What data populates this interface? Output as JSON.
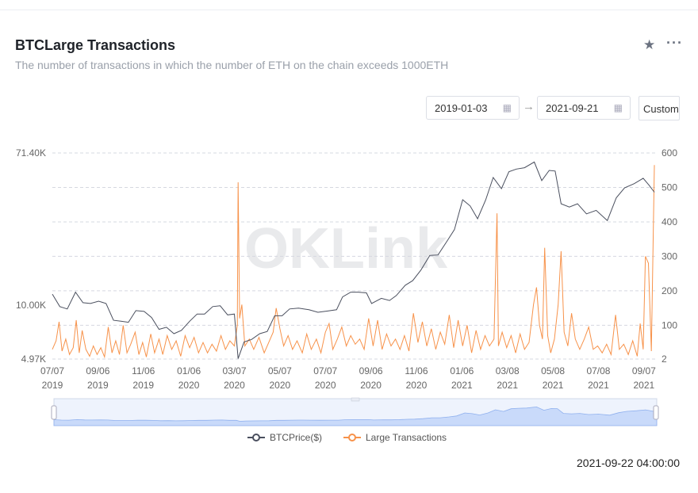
{
  "header": {
    "title": "BTCLarge Transactions",
    "subtitle": "The number of transactions in which the number of ETH on the chain exceeds 1000ETH"
  },
  "controls": {
    "start_date": "2019-01-03",
    "end_date": "2021-09-21",
    "arrow": "→",
    "custom_label": "Custom"
  },
  "icons": {
    "favorite": "star-icon",
    "more": "more-icon",
    "calendar": "calendar-icon"
  },
  "timestamp": "2021-09-22 04:00:00",
  "watermark": "OKLink",
  "colors": {
    "btc": "#4a4f5e",
    "tx": "#f7924a",
    "grid": "#d5d8e0",
    "nav": "#c9dafa"
  },
  "chart_data": {
    "type": "line",
    "x_range": [
      "2019-07-07",
      "2021-09-21"
    ],
    "x_ticks": [
      [
        "07/07",
        "2019",
        "2019-07-07"
      ],
      [
        "09/06",
        "2019",
        "2019-09-06"
      ],
      [
        "11/06",
        "2019",
        "2019-11-06"
      ],
      [
        "01/06",
        "2020",
        "2020-01-06"
      ],
      [
        "03/07",
        "2020",
        "2020-03-07"
      ],
      [
        "05/07",
        "2020",
        "2020-05-07"
      ],
      [
        "07/07",
        "2020",
        "2020-07-07"
      ],
      [
        "09/06",
        "2020",
        "2020-09-06"
      ],
      [
        "11/06",
        "2020",
        "2020-11-06"
      ],
      [
        "01/06",
        "2021",
        "2021-01-06"
      ],
      [
        "03/08",
        "2021",
        "2021-03-08"
      ],
      [
        "05/08",
        "2021",
        "2021-05-08"
      ],
      [
        "07/08",
        "2021",
        "2021-07-08"
      ],
      [
        "09/07",
        "2021",
        "2021-09-07"
      ]
    ],
    "y_left": {
      "scale": "log",
      "min": 4970,
      "max": 71400,
      "ticks": [
        [
          "71.40K",
          71400
        ],
        [
          "10.00K",
          10000
        ],
        [
          "4.97K",
          4970
        ]
      ]
    },
    "y_right": {
      "scale": "linear",
      "min": 2,
      "max": 600,
      "ticks": [
        [
          "600",
          600
        ],
        [
          "500",
          500
        ],
        [
          "400",
          400
        ],
        [
          "300",
          300
        ],
        [
          "200",
          200
        ],
        [
          "100",
          100
        ],
        [
          "2",
          2
        ]
      ]
    },
    "series": [
      {
        "name": "BTCPrice($)",
        "axis": "left",
        "points": [
          [
            "2019-07-07",
            11500
          ],
          [
            "2019-07-17",
            9800
          ],
          [
            "2019-07-27",
            9500
          ],
          [
            "2019-08-07",
            11800
          ],
          [
            "2019-08-17",
            10300
          ],
          [
            "2019-08-27",
            10200
          ],
          [
            "2019-09-07",
            10500
          ],
          [
            "2019-09-17",
            10200
          ],
          [
            "2019-09-27",
            8200
          ],
          [
            "2019-10-07",
            8100
          ],
          [
            "2019-10-17",
            8000
          ],
          [
            "2019-10-27",
            9300
          ],
          [
            "2019-11-07",
            9200
          ],
          [
            "2019-11-17",
            8500
          ],
          [
            "2019-11-27",
            7300
          ],
          [
            "2019-12-07",
            7500
          ],
          [
            "2019-12-17",
            6900
          ],
          [
            "2019-12-27",
            7200
          ],
          [
            "2020-01-07",
            8100
          ],
          [
            "2020-01-17",
            8900
          ],
          [
            "2020-01-27",
            8900
          ],
          [
            "2020-02-07",
            9800
          ],
          [
            "2020-02-17",
            9900
          ],
          [
            "2020-02-27",
            8800
          ],
          [
            "2020-03-07",
            8900
          ],
          [
            "2020-03-12",
            5000
          ],
          [
            "2020-03-20",
            6200
          ],
          [
            "2020-03-30",
            6400
          ],
          [
            "2020-04-10",
            6900
          ],
          [
            "2020-04-20",
            7100
          ],
          [
            "2020-04-30",
            8700
          ],
          [
            "2020-05-10",
            8700
          ],
          [
            "2020-05-20",
            9500
          ],
          [
            "2020-06-01",
            9600
          ],
          [
            "2020-06-15",
            9400
          ],
          [
            "2020-06-27",
            9100
          ],
          [
            "2020-07-10",
            9250
          ],
          [
            "2020-07-22",
            9400
          ],
          [
            "2020-07-30",
            11100
          ],
          [
            "2020-08-10",
            11800
          ],
          [
            "2020-08-20",
            11800
          ],
          [
            "2020-08-31",
            11700
          ],
          [
            "2020-09-07",
            10200
          ],
          [
            "2020-09-20",
            10900
          ],
          [
            "2020-10-01",
            10600
          ],
          [
            "2020-10-10",
            11300
          ],
          [
            "2020-10-22",
            12900
          ],
          [
            "2020-11-01",
            13700
          ],
          [
            "2020-11-12",
            15700
          ],
          [
            "2020-11-24",
            19000
          ],
          [
            "2020-12-05",
            19100
          ],
          [
            "2020-12-17",
            22800
          ],
          [
            "2020-12-27",
            26500
          ],
          [
            "2021-01-07",
            39000
          ],
          [
            "2021-01-17",
            36000
          ],
          [
            "2021-01-27",
            30500
          ],
          [
            "2021-02-07",
            39000
          ],
          [
            "2021-02-17",
            52000
          ],
          [
            "2021-02-28",
            45000
          ],
          [
            "2021-03-10",
            56000
          ],
          [
            "2021-03-20",
            58000
          ],
          [
            "2021-03-31",
            59000
          ],
          [
            "2021-04-13",
            63500
          ],
          [
            "2021-04-23",
            50000
          ],
          [
            "2021-05-03",
            57000
          ],
          [
            "2021-05-11",
            56500
          ],
          [
            "2021-05-19",
            37000
          ],
          [
            "2021-05-30",
            35500
          ],
          [
            "2021-06-10",
            37000
          ],
          [
            "2021-06-22",
            32500
          ],
          [
            "2021-07-05",
            34000
          ],
          [
            "2021-07-20",
            29800
          ],
          [
            "2021-08-01",
            40000
          ],
          [
            "2021-08-12",
            45500
          ],
          [
            "2021-08-25",
            48000
          ],
          [
            "2021-09-06",
            51500
          ],
          [
            "2021-09-14",
            47000
          ],
          [
            "2021-09-21",
            43000
          ]
        ]
      },
      {
        "name": "Large Transactions",
        "axis": "right",
        "points": [
          [
            "2019-07-07",
            30
          ],
          [
            "2019-07-12",
            55
          ],
          [
            "2019-07-16",
            110
          ],
          [
            "2019-07-20",
            25
          ],
          [
            "2019-07-25",
            60
          ],
          [
            "2019-07-30",
            15
          ],
          [
            "2019-08-04",
            35
          ],
          [
            "2019-08-08",
            115
          ],
          [
            "2019-08-12",
            20
          ],
          [
            "2019-08-16",
            85
          ],
          [
            "2019-08-21",
            30
          ],
          [
            "2019-08-26",
            10
          ],
          [
            "2019-08-31",
            40
          ],
          [
            "2019-09-05",
            15
          ],
          [
            "2019-09-10",
            35
          ],
          [
            "2019-09-15",
            8
          ],
          [
            "2019-09-20",
            95
          ],
          [
            "2019-09-25",
            20
          ],
          [
            "2019-09-30",
            55
          ],
          [
            "2019-10-05",
            15
          ],
          [
            "2019-10-10",
            100
          ],
          [
            "2019-10-15",
            20
          ],
          [
            "2019-10-20",
            45
          ],
          [
            "2019-10-26",
            80
          ],
          [
            "2019-10-31",
            15
          ],
          [
            "2019-11-05",
            50
          ],
          [
            "2019-11-10",
            8
          ],
          [
            "2019-11-16",
            75
          ],
          [
            "2019-11-21",
            20
          ],
          [
            "2019-11-27",
            60
          ],
          [
            "2019-12-02",
            15
          ],
          [
            "2019-12-08",
            70
          ],
          [
            "2019-12-14",
            30
          ],
          [
            "2019-12-20",
            55
          ],
          [
            "2019-12-26",
            10
          ],
          [
            "2020-01-01",
            70
          ],
          [
            "2020-01-07",
            35
          ],
          [
            "2020-01-13",
            65
          ],
          [
            "2020-01-19",
            20
          ],
          [
            "2020-01-25",
            50
          ],
          [
            "2020-01-31",
            20
          ],
          [
            "2020-02-06",
            45
          ],
          [
            "2020-02-12",
            25
          ],
          [
            "2020-02-18",
            70
          ],
          [
            "2020-02-24",
            30
          ],
          [
            "2020-03-01",
            55
          ],
          [
            "2020-03-07",
            40
          ],
          [
            "2020-03-11",
            100
          ],
          [
            "2020-03-12",
            515
          ],
          [
            "2020-03-14",
            120
          ],
          [
            "2020-03-17",
            160
          ],
          [
            "2020-03-21",
            40
          ],
          [
            "2020-03-27",
            60
          ],
          [
            "2020-04-02",
            30
          ],
          [
            "2020-04-09",
            65
          ],
          [
            "2020-04-16",
            20
          ],
          [
            "2020-04-22",
            50
          ],
          [
            "2020-04-28",
            80
          ],
          [
            "2020-05-02",
            150
          ],
          [
            "2020-05-07",
            90
          ],
          [
            "2020-05-12",
            40
          ],
          [
            "2020-05-18",
            70
          ],
          [
            "2020-05-24",
            30
          ],
          [
            "2020-05-30",
            55
          ],
          [
            "2020-06-06",
            20
          ],
          [
            "2020-06-12",
            75
          ],
          [
            "2020-06-18",
            30
          ],
          [
            "2020-06-25",
            60
          ],
          [
            "2020-07-01",
            20
          ],
          [
            "2020-07-07",
            80
          ],
          [
            "2020-07-12",
            105
          ],
          [
            "2020-07-17",
            30
          ],
          [
            "2020-07-23",
            60
          ],
          [
            "2020-07-29",
            95
          ],
          [
            "2020-08-04",
            40
          ],
          [
            "2020-08-10",
            70
          ],
          [
            "2020-08-16",
            45
          ],
          [
            "2020-08-22",
            60
          ],
          [
            "2020-08-28",
            30
          ],
          [
            "2020-09-03",
            120
          ],
          [
            "2020-09-09",
            40
          ],
          [
            "2020-09-15",
            115
          ],
          [
            "2020-09-21",
            30
          ],
          [
            "2020-09-27",
            75
          ],
          [
            "2020-10-03",
            40
          ],
          [
            "2020-10-09",
            60
          ],
          [
            "2020-10-15",
            30
          ],
          [
            "2020-10-21",
            70
          ],
          [
            "2020-10-27",
            25
          ],
          [
            "2020-11-02",
            135
          ],
          [
            "2020-11-08",
            50
          ],
          [
            "2020-11-14",
            110
          ],
          [
            "2020-11-20",
            40
          ],
          [
            "2020-11-26",
            90
          ],
          [
            "2020-12-02",
            30
          ],
          [
            "2020-12-08",
            80
          ],
          [
            "2020-12-14",
            45
          ],
          [
            "2020-12-20",
            130
          ],
          [
            "2020-12-26",
            35
          ],
          [
            "2021-01-01",
            115
          ],
          [
            "2021-01-07",
            40
          ],
          [
            "2021-01-13",
            100
          ],
          [
            "2021-01-19",
            20
          ],
          [
            "2021-01-25",
            85
          ],
          [
            "2021-01-31",
            30
          ],
          [
            "2021-02-06",
            70
          ],
          [
            "2021-02-12",
            40
          ],
          [
            "2021-02-18",
            60
          ],
          [
            "2021-02-22",
            425
          ],
          [
            "2021-02-24",
            40
          ],
          [
            "2021-03-01",
            80
          ],
          [
            "2021-03-07",
            35
          ],
          [
            "2021-03-13",
            70
          ],
          [
            "2021-03-19",
            20
          ],
          [
            "2021-03-25",
            75
          ],
          [
            "2021-03-31",
            30
          ],
          [
            "2021-04-06",
            50
          ],
          [
            "2021-04-12",
            160
          ],
          [
            "2021-04-16",
            210
          ],
          [
            "2021-04-20",
            100
          ],
          [
            "2021-04-24",
            60
          ],
          [
            "2021-04-27",
            325
          ],
          [
            "2021-05-01",
            70
          ],
          [
            "2021-05-05",
            20
          ],
          [
            "2021-05-10",
            60
          ],
          [
            "2021-05-15",
            160
          ],
          [
            "2021-05-19",
            315
          ],
          [
            "2021-05-23",
            80
          ],
          [
            "2021-05-28",
            40
          ],
          [
            "2021-06-02",
            135
          ],
          [
            "2021-06-07",
            60
          ],
          [
            "2021-06-13",
            30
          ],
          [
            "2021-06-19",
            60
          ],
          [
            "2021-06-25",
            95
          ],
          [
            "2021-07-01",
            30
          ],
          [
            "2021-07-07",
            40
          ],
          [
            "2021-07-13",
            20
          ],
          [
            "2021-07-19",
            45
          ],
          [
            "2021-07-25",
            15
          ],
          [
            "2021-07-31",
            130
          ],
          [
            "2021-08-05",
            30
          ],
          [
            "2021-08-11",
            45
          ],
          [
            "2021-08-17",
            15
          ],
          [
            "2021-08-23",
            55
          ],
          [
            "2021-08-29",
            10
          ],
          [
            "2021-09-02",
            105
          ],
          [
            "2021-09-06",
            30
          ],
          [
            "2021-09-09",
            300
          ],
          [
            "2021-09-13",
            280
          ],
          [
            "2021-09-17",
            25
          ],
          [
            "2021-09-21",
            565
          ]
        ]
      }
    ],
    "legend": {
      "position": "bottom",
      "entries": [
        "BTCPrice($)",
        "Large Transactions"
      ]
    },
    "grid": true
  }
}
